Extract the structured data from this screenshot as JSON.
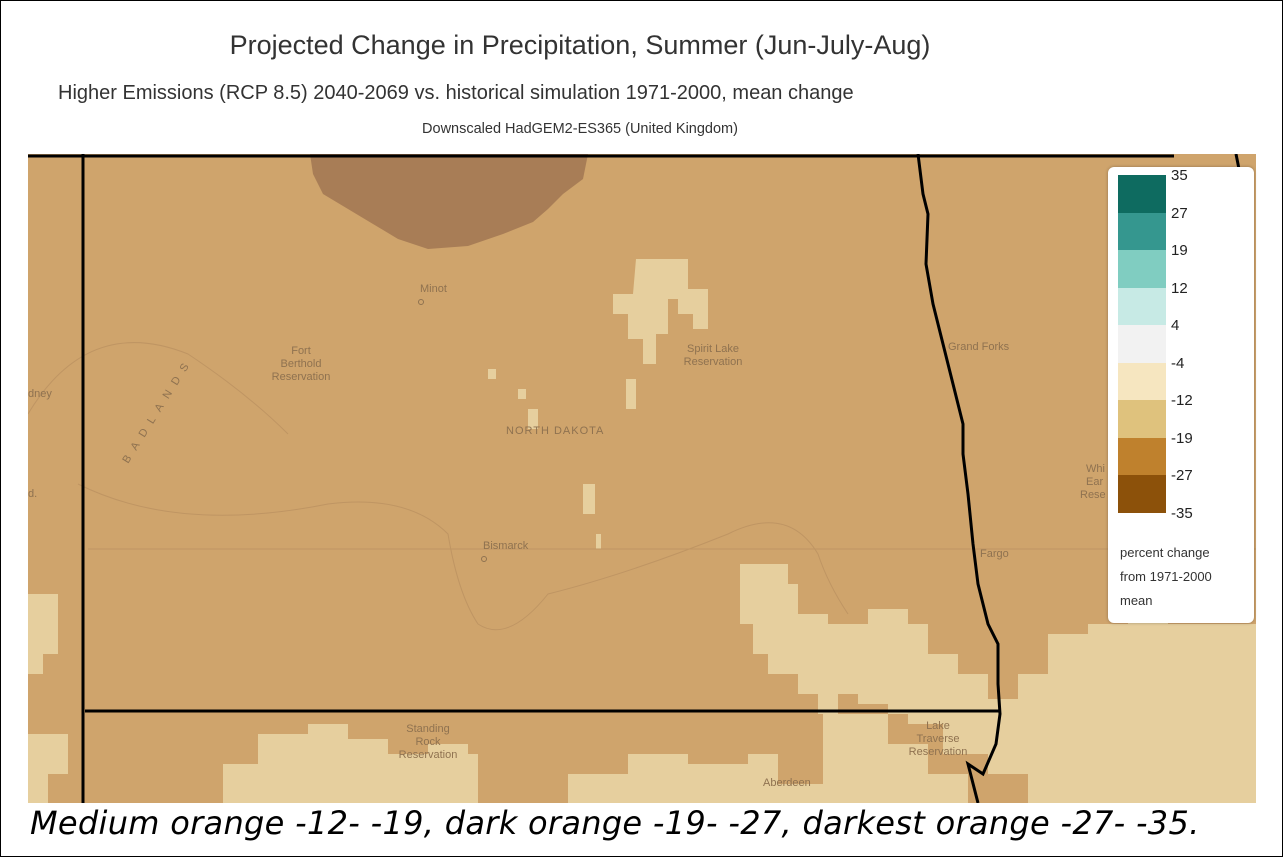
{
  "header": {
    "title": "Projected Change in Precipitation, Summer (Jun-July-Aug)",
    "subtitle": "Higher Emissions (RCP 8.5) 2040-2069 vs. historical simulation 1971-2000, mean change",
    "source": "Downscaled HadGEM2-ES365 (United Kingdom)"
  },
  "map": {
    "labels": {
      "minot": "Minot",
      "fort_berthold": [
        "Fort",
        "Berthold",
        "Reservation"
      ],
      "badlands": "BADLANDS",
      "spirit_lake": [
        "Spirit Lake",
        "Reservation"
      ],
      "state": "NORTH DAKOTA",
      "bismarck": "Bismarck",
      "grand_forks": "Grand Forks",
      "fargo": "Fargo",
      "standing_rock": [
        "Standing",
        "Rock",
        "Reservation"
      ],
      "lake_traverse": [
        "Lake",
        "Traverse",
        "Reservation"
      ],
      "aberdeen": "Aberdeen",
      "sidney": "dney",
      "glendive": "d.",
      "white_earth": [
        "Whi",
        "Ear",
        "Rese"
      ]
    },
    "colors": {
      "base": "#cfa46c",
      "light": "#e6cf9e",
      "dark": "#a87d56",
      "border": "#000000"
    }
  },
  "legend": {
    "bins": [
      {
        "color": "#0e6b60"
      },
      {
        "color": "#35978f"
      },
      {
        "color": "#80cdc1"
      },
      {
        "color": "#c7eae5"
      },
      {
        "color": "#f2f2f2"
      },
      {
        "color": "#f6e6c0"
      },
      {
        "color": "#dfc27d"
      },
      {
        "color": "#bf812d"
      },
      {
        "color": "#8c510a"
      }
    ],
    "ticks": [
      "35",
      "27",
      "19",
      "12",
      "4",
      "-4",
      "-12",
      "-19",
      "-27",
      "-35"
    ],
    "note": [
      "percent change",
      "from 1971-2000",
      "mean"
    ]
  },
  "caption": "Medium orange -12- -19, dark orange -19- -27, darkest orange -27- -35."
}
